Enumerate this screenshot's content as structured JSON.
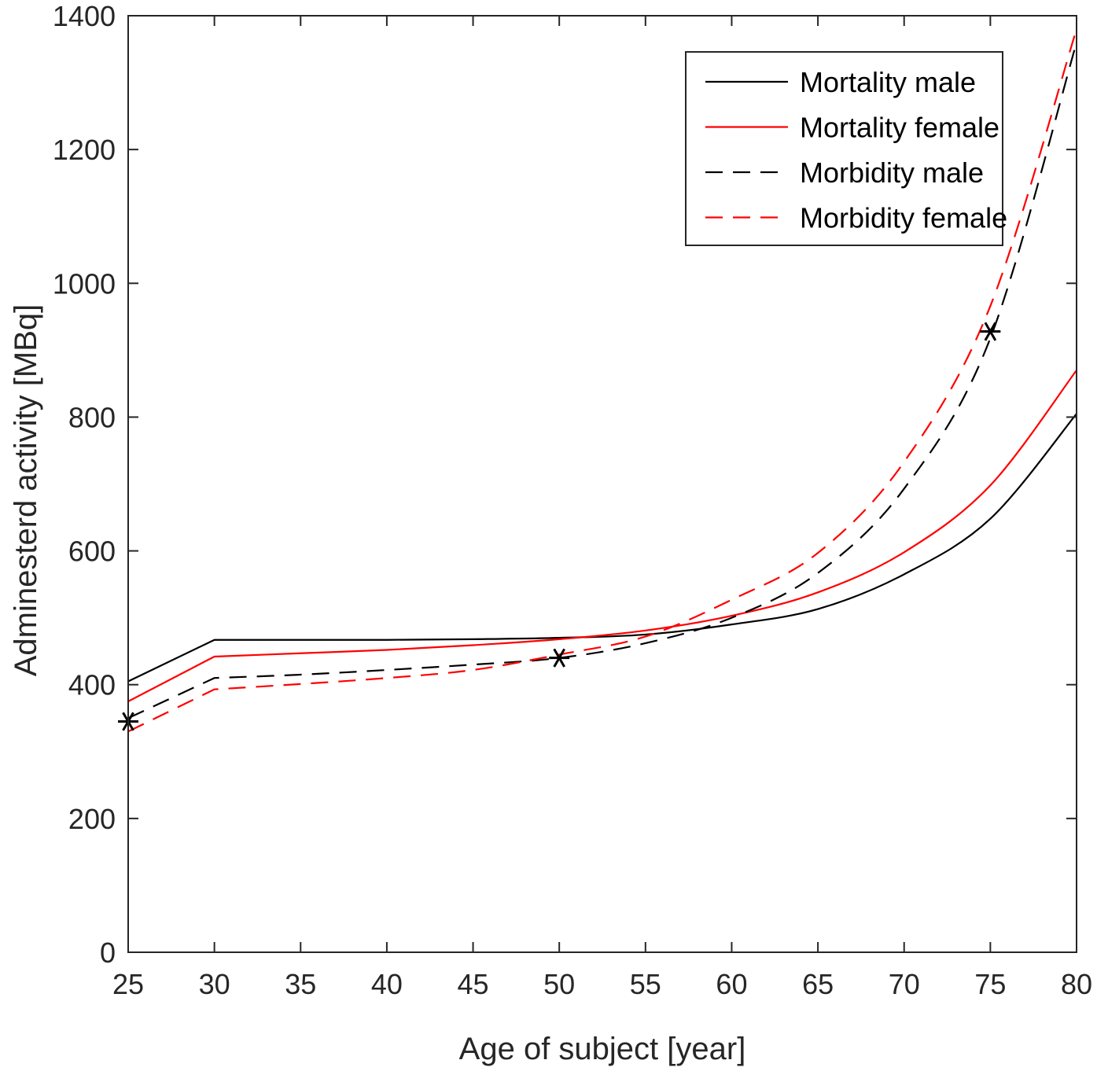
{
  "chart_data": {
    "type": "line",
    "title": "",
    "xlabel": "Age of subject [year]",
    "ylabel": "Adminesterd activity [MBq]",
    "xlim": [
      25,
      80
    ],
    "ylim": [
      0,
      1400
    ],
    "xticks": [
      25,
      30,
      35,
      40,
      45,
      50,
      55,
      60,
      65,
      70,
      75,
      80
    ],
    "yticks": [
      0,
      200,
      400,
      600,
      800,
      1000,
      1200,
      1400
    ],
    "grid": false,
    "legend_position": "top-right",
    "x": [
      25,
      30,
      35,
      40,
      45,
      50,
      55,
      60,
      65,
      70,
      75,
      80
    ],
    "series": [
      {
        "name": "Mortality male",
        "color": "#000000",
        "dash": "solid",
        "values": [
          405,
          467,
          467,
          467,
          468,
          470,
          475,
          490,
          513,
          565,
          648,
          805
        ]
      },
      {
        "name": "Mortality female",
        "color": "#ff0000",
        "dash": "solid",
        "values": [
          375,
          442,
          447,
          452,
          459,
          468,
          481,
          503,
          538,
          598,
          698,
          870
        ]
      },
      {
        "name": "Morbidity male",
        "color": "#000000",
        "dash": "dashed",
        "values": [
          350,
          410,
          415,
          422,
          430,
          440,
          462,
          500,
          567,
          693,
          918,
          1360
        ]
      },
      {
        "name": "Morbidity female",
        "color": "#ff0000",
        "dash": "dashed",
        "values": [
          330,
          393,
          401,
          410,
          422,
          445,
          472,
          527,
          597,
          733,
          966,
          1380
        ]
      }
    ],
    "markers": [
      {
        "x": 25,
        "y": 345,
        "symbol": "*"
      },
      {
        "x": 50,
        "y": 440,
        "symbol": "*"
      },
      {
        "x": 75,
        "y": 928,
        "symbol": "*"
      }
    ]
  }
}
